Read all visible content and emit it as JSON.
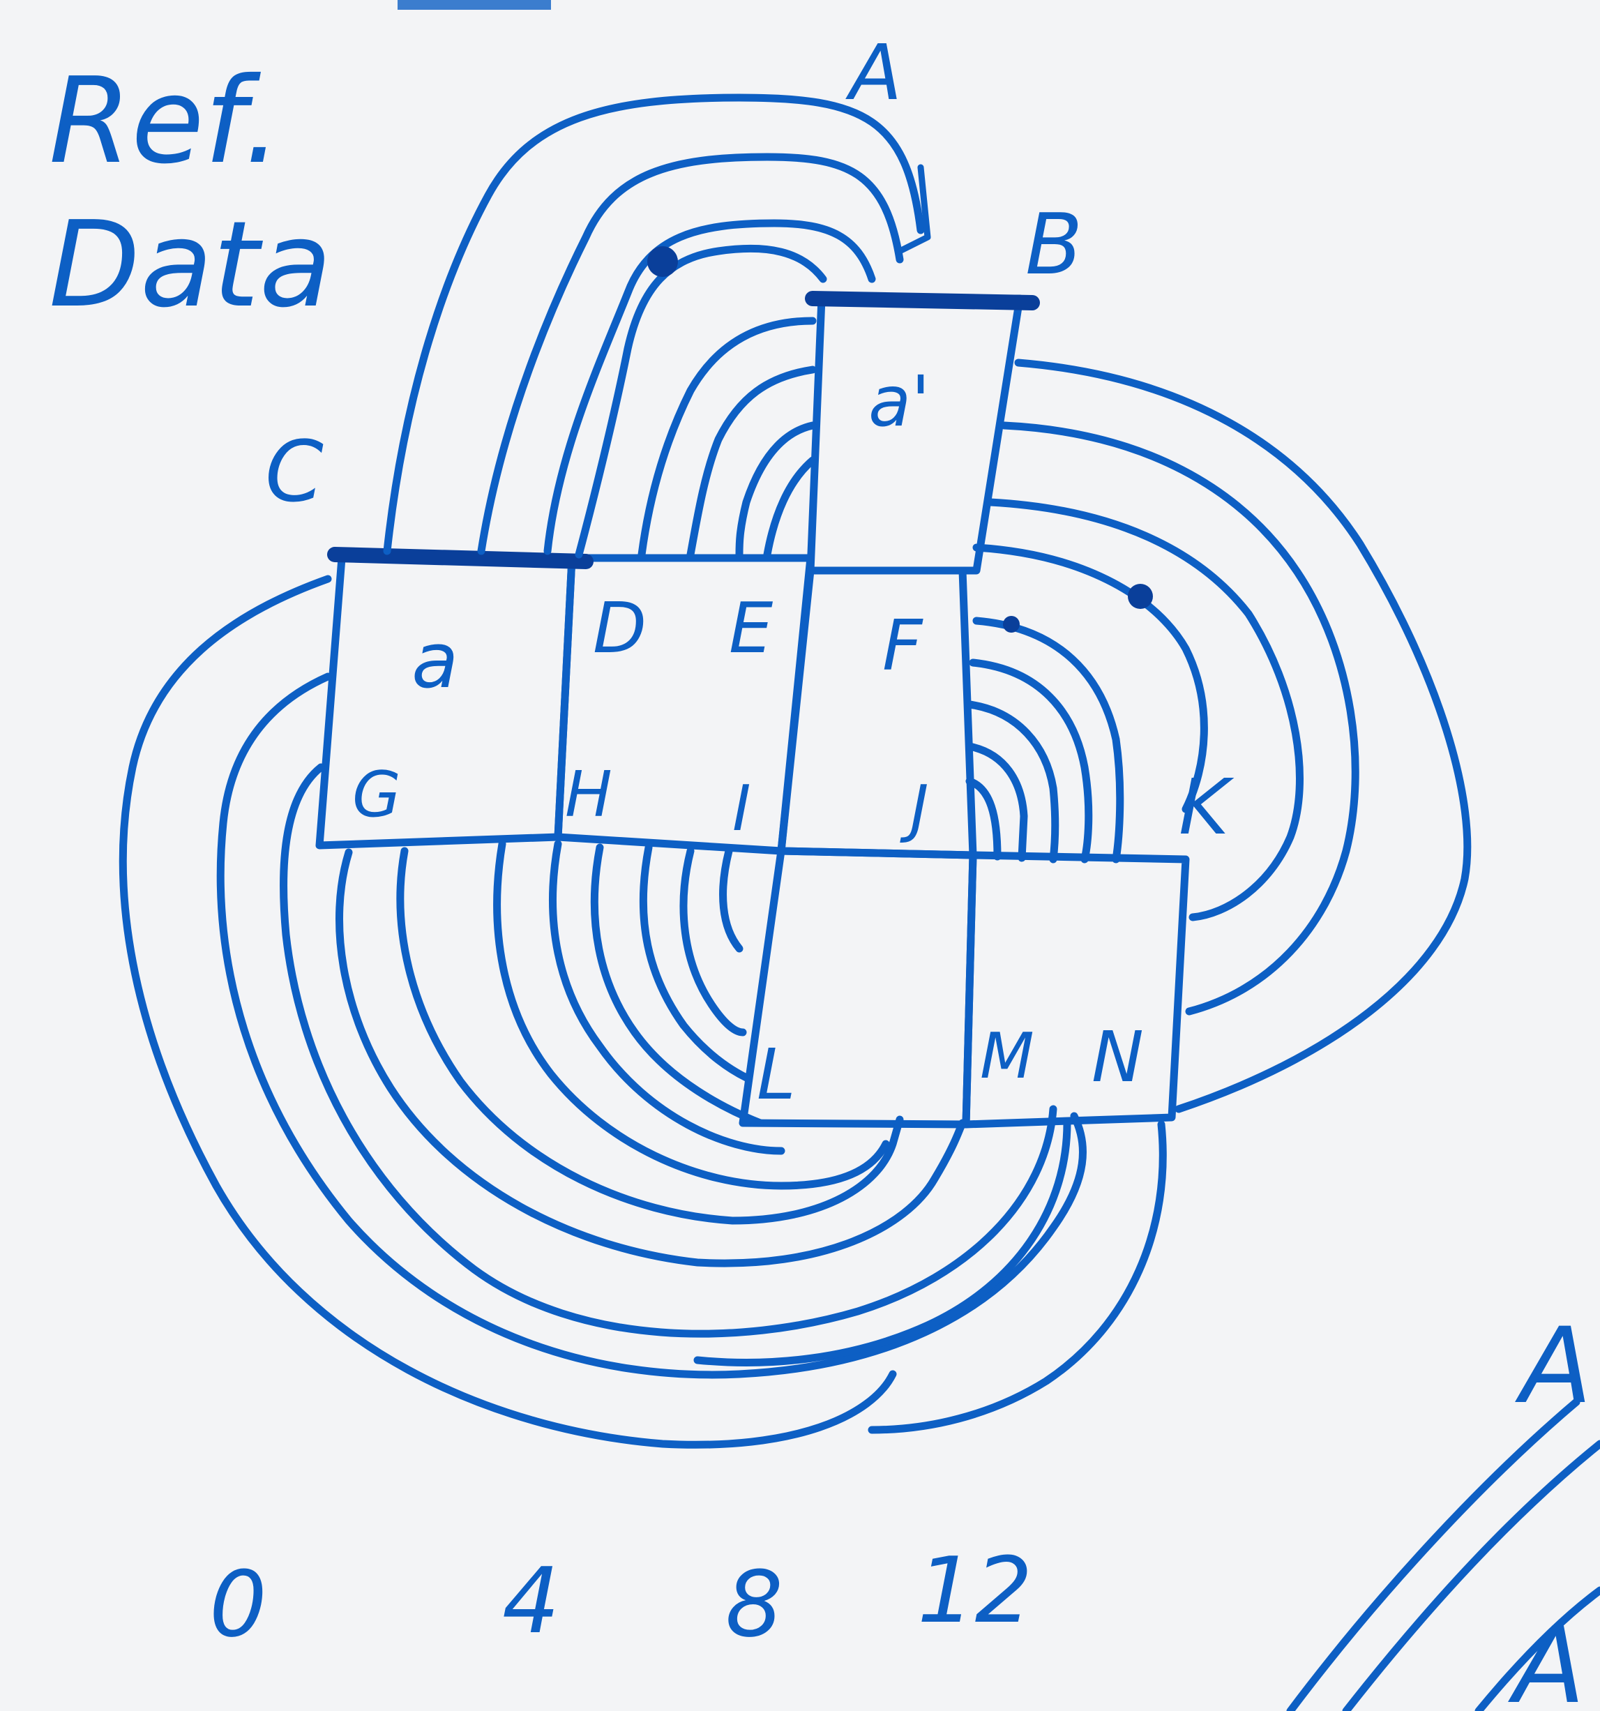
{
  "heading": {
    "line1": "Ref.",
    "line2": "Data"
  },
  "nodes": {
    "A": "A",
    "B": "B",
    "C": "C",
    "D": "D",
    "E": "E",
    "F": "F",
    "G": "G",
    "H": "H",
    "I": "I",
    "J": "J",
    "K": "K",
    "L": "L",
    "M": "M",
    "N": "N"
  },
  "cells": {
    "left_square": "a",
    "top_square": "a'"
  },
  "scale": [
    "0",
    "4",
    "8",
    "12"
  ],
  "margin_fragment": {
    "top": "A",
    "bottom": "A"
  },
  "colors": {
    "ink": "#0d5fc4",
    "ink_dark": "#0a3f9a",
    "paper": "#f3f4f6"
  }
}
